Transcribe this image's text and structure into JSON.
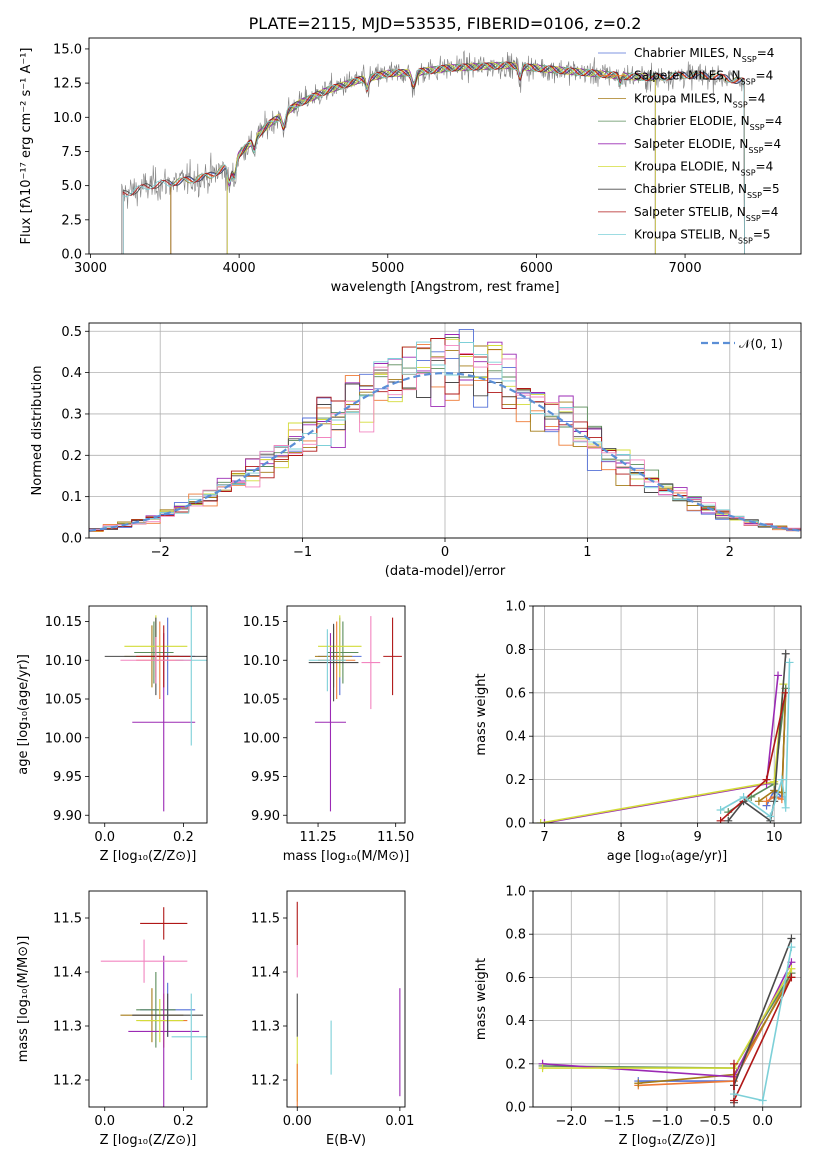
{
  "colors": {
    "Chabrier MILES": "#5470d8",
    "Salpeter MILES": "#ee7a35",
    "Kroupa MILES": "#a57c18",
    "Chabrier ELODIE": "#5a8c5a",
    "Salpeter ELODIE": "#9b2ab4",
    "Kroupa ELODIE": "#d3dc3a",
    "Chabrier STELIB": "#4a4a4a",
    "Salpeter STELIB": "#b01818",
    "Kroupa STELIB": "#7dd0d8",
    "Data": "#808080",
    "Pink": "#f285c0",
    "Gaussian": "#5b8fd6"
  },
  "chart_data": [
    {
      "id": "spectrum",
      "type": "line",
      "title": "PLATE=2115, MJD=53535, FIBERID=0106, z=0.2",
      "xlabel": "wavelength [Angstrom, rest frame]",
      "ylabel": "Flux [fλ10⁻¹⁷ erg cm⁻² s⁻¹ A⁻¹]",
      "xlim": [
        2990,
        7780
      ],
      "ylim": [
        0,
        15.8
      ],
      "xticks": [
        3000,
        4000,
        5000,
        6000,
        7000
      ],
      "yticks": [
        0.0,
        2.5,
        5.0,
        7.5,
        10.0,
        12.5,
        15.0
      ],
      "legend_position": "top-right",
      "legend": [
        "Chabrier MILES, N_SSP=4",
        "Salpeter MILES, N_SSP=4",
        "Kroupa MILES, N_SSP=4",
        "Chabrier ELODIE, N_SSP=4",
        "Salpeter ELODIE, N_SSP=4",
        "Kroupa ELODIE, N_SSP=4",
        "Chabrier STELIB, N_SSP=5",
        "Salpeter STELIB, N_SSP=4",
        "Kroupa STELIB, N_SSP=5"
      ],
      "continuum": [
        [
          3200,
          4.3
        ],
        [
          3400,
          5.0
        ],
        [
          3600,
          5.3
        ],
        [
          3800,
          5.7
        ],
        [
          3900,
          6.3
        ],
        [
          4000,
          7.3
        ],
        [
          4200,
          9.5
        ],
        [
          4400,
          11.0
        ],
        [
          4600,
          12.0
        ],
        [
          4800,
          12.7
        ],
        [
          5000,
          13.2
        ],
        [
          5200,
          13.3
        ],
        [
          5400,
          13.6
        ],
        [
          5600,
          13.7
        ],
        [
          5800,
          13.8
        ],
        [
          6000,
          13.6
        ],
        [
          6200,
          13.4
        ],
        [
          6400,
          13.2
        ],
        [
          6600,
          13.0
        ],
        [
          6800,
          12.9
        ],
        [
          7000,
          13.1
        ],
        [
          7200,
          13.0
        ],
        [
          7400,
          12.6
        ]
      ]
    },
    {
      "id": "residuals",
      "type": "line",
      "xlabel": "(data-model)/error",
      "ylabel": "Normed distribution",
      "xlim": [
        -2.5,
        2.5
      ],
      "ylim": [
        0,
        0.52
      ],
      "xticks": [
        -2,
        -1,
        0,
        1,
        2
      ],
      "yticks": [
        0.0,
        0.1,
        0.2,
        0.3,
        0.4,
        0.5
      ],
      "grid": true,
      "legend": [
        "𝒩(0, 1)"
      ],
      "legend_position": "top-right"
    },
    {
      "id": "age-Z",
      "type": "scatter",
      "xlabel": "Z [log₁₀(Z/Z⊙)]",
      "ylabel": "age  [log₁₀(age/yr)]",
      "xlim": [
        -0.04,
        0.26
      ],
      "ylim": [
        9.89,
        10.17
      ],
      "xticks": [
        0.0,
        0.2
      ],
      "yticks": [
        9.9,
        9.95,
        10.0,
        10.05,
        10.1,
        10.15
      ],
      "points": [
        {
          "model": "Chabrier MILES",
          "x": 0.16,
          "y": 10.105,
          "xerr": 0.07,
          "yerr": 0.05
        },
        {
          "model": "Salpeter MILES",
          "x": 0.14,
          "y": 10.1,
          "xerr": 0.06,
          "yerr": 0.05
        },
        {
          "model": "Kroupa MILES",
          "x": 0.12,
          "y": 10.105,
          "xerr": 0.07,
          "yerr": 0.04
        },
        {
          "model": "Chabrier ELODIE",
          "x": 0.125,
          "y": 10.11,
          "xerr": 0.05,
          "yerr": 0.04
        },
        {
          "model": "Salpeter ELODIE",
          "x": 0.15,
          "y": 10.02,
          "xerr": 0.08,
          "yerr": 0.115
        },
        {
          "model": "Kroupa ELODIE",
          "x": 0.13,
          "y": 10.118,
          "xerr": 0.08,
          "yerr": 0.04
        },
        {
          "model": "Chabrier STELIB",
          "x": 0.13,
          "y": 10.105,
          "xerr": 0.13,
          "yerr": 0.05
        },
        {
          "model": "Salpeter STELIB",
          "x": 0.15,
          "y": 10.105,
          "xerr": 0.07,
          "yerr": 0.04
        },
        {
          "model": "Kroupa STELIB",
          "x": 0.22,
          "y": 10.1,
          "xerr": 0.04,
          "yerr": 0.11
        },
        {
          "model": "Pink",
          "x": 0.13,
          "y": 10.1,
          "xerr": 0.09,
          "yerr": 0.03
        }
      ]
    },
    {
      "id": "age-mass",
      "type": "scatter",
      "xlabel": "mass [log₁₀(M/M⊙)]",
      "xlim": [
        11.15,
        11.53
      ],
      "ylim": [
        9.89,
        10.17
      ],
      "xticks": [
        11.25,
        11.5
      ],
      "yticks": [
        9.9,
        9.95,
        10.0,
        10.05,
        10.1,
        10.15
      ],
      "points": [
        {
          "model": "Chabrier MILES",
          "x": 11.32,
          "y": 10.105,
          "xerr": 0.07,
          "yerr": 0.05
        },
        {
          "model": "Salpeter MILES",
          "x": 11.31,
          "y": 10.1,
          "xerr": 0.06,
          "yerr": 0.05
        },
        {
          "model": "Kroupa MILES",
          "x": 11.3,
          "y": 10.105,
          "xerr": 0.06,
          "yerr": 0.04
        },
        {
          "model": "Chabrier ELODIE",
          "x": 11.33,
          "y": 10.11,
          "xerr": 0.05,
          "yerr": 0.04
        },
        {
          "model": "Salpeter ELODIE",
          "x": 11.29,
          "y": 10.02,
          "xerr": 0.05,
          "yerr": 0.115
        },
        {
          "model": "Kroupa ELODIE",
          "x": 11.32,
          "y": 10.118,
          "xerr": 0.07,
          "yerr": 0.04
        },
        {
          "model": "Chabrier STELIB",
          "x": 11.3,
          "y": 10.097,
          "xerr": 0.08,
          "yerr": 0.05
        },
        {
          "model": "Salpeter STELIB",
          "x": 11.49,
          "y": 10.105,
          "xerr": 0.03,
          "yerr": 0.05
        },
        {
          "model": "Kroupa STELIB",
          "x": 11.28,
          "y": 10.1,
          "xerr": 0.06,
          "yerr": 0.04
        },
        {
          "model": "Pink",
          "x": 11.42,
          "y": 10.097,
          "xerr": 0.03,
          "yerr": 0.06
        }
      ]
    },
    {
      "id": "weight-age",
      "type": "line",
      "xlabel": "age  [log₁₀(age/yr)]",
      "ylabel": "mass weight",
      "xlim": [
        6.85,
        10.35
      ],
      "ylim": [
        0,
        1.0
      ],
      "xticks": [
        7,
        8,
        9,
        10
      ],
      "yticks": [
        0.0,
        0.2,
        0.4,
        0.6,
        0.8,
        1.0
      ],
      "grid": true,
      "series": [
        {
          "model": "Chabrier MILES",
          "points": [
            [
              9.9,
              0.08
            ],
            [
              10.0,
              0.15
            ],
            [
              10.1,
              0.12
            ],
            [
              10.15,
              0.62
            ]
          ]
        },
        {
          "model": "Salpeter MILES",
          "points": [
            [
              9.9,
              0.1
            ],
            [
              10.0,
              0.12
            ],
            [
              10.1,
              0.11
            ],
            [
              10.15,
              0.62
            ]
          ]
        },
        {
          "model": "Kroupa MILES",
          "points": [
            [
              9.8,
              0.1
            ],
            [
              10.0,
              0.15
            ],
            [
              10.1,
              0.14
            ],
            [
              10.15,
              0.6
            ]
          ]
        },
        {
          "model": "Chabrier ELODIE",
          "points": [
            [
              9.4,
              0.05
            ],
            [
              9.7,
              0.12
            ],
            [
              10.0,
              0.18
            ],
            [
              10.15,
              0.62
            ]
          ]
        },
        {
          "model": "Salpeter ELODIE",
          "points": [
            [
              7.0,
              0.0
            ],
            [
              9.9,
              0.18
            ],
            [
              10.05,
              0.68
            ]
          ]
        },
        {
          "model": "Kroupa ELODIE",
          "points": [
            [
              6.95,
              0.0
            ],
            [
              10.0,
              0.19
            ],
            [
              10.12,
              0.64
            ]
          ]
        },
        {
          "model": "Chabrier STELIB",
          "points": [
            [
              9.4,
              0.01
            ],
            [
              9.6,
              0.1
            ],
            [
              9.95,
              0.01
            ],
            [
              10.0,
              0.1
            ],
            [
              10.15,
              0.78
            ]
          ]
        },
        {
          "model": "Salpeter STELIB",
          "points": [
            [
              9.3,
              0.01
            ],
            [
              9.9,
              0.2
            ],
            [
              10.15,
              0.6
            ]
          ]
        },
        {
          "model": "Kroupa STELIB",
          "points": [
            [
              9.3,
              0.06
            ],
            [
              9.6,
              0.12
            ],
            [
              9.95,
              0.03
            ],
            [
              10.1,
              0.2
            ],
            [
              10.15,
              0.07
            ],
            [
              10.2,
              0.74
            ]
          ]
        }
      ]
    },
    {
      "id": "mass-Z",
      "type": "scatter",
      "xlabel": "Z [log₁₀(Z/Z⊙)]",
      "ylabel": "mass [log₁₀(M/M⊙)]",
      "xlim": [
        -0.04,
        0.26
      ],
      "ylim": [
        11.15,
        11.55
      ],
      "xticks": [
        0.0,
        0.2
      ],
      "yticks": [
        11.2,
        11.3,
        11.4,
        11.5
      ],
      "points": [
        {
          "model": "Chabrier MILES",
          "x": 0.16,
          "y": 11.33,
          "xerr": 0.07,
          "yerr": 0.05
        },
        {
          "model": "Salpeter MILES",
          "x": 0.15,
          "y": 11.31,
          "xerr": 0.06,
          "yerr": 0.05
        },
        {
          "model": "Kroupa MILES",
          "x": 0.12,
          "y": 11.32,
          "xerr": 0.08,
          "yerr": 0.05
        },
        {
          "model": "Chabrier ELODIE",
          "x": 0.13,
          "y": 11.33,
          "xerr": 0.05,
          "yerr": 0.07
        },
        {
          "model": "Salpeter ELODIE",
          "x": 0.15,
          "y": 11.29,
          "xerr": 0.09,
          "yerr": 0.14
        },
        {
          "model": "Kroupa ELODIE",
          "x": 0.14,
          "y": 11.31,
          "xerr": 0.06,
          "yerr": 0.04
        },
        {
          "model": "Chabrier STELIB",
          "x": 0.16,
          "y": 11.32,
          "xerr": 0.09,
          "yerr": 0.04
        },
        {
          "model": "Salpeter STELIB",
          "x": 0.15,
          "y": 11.49,
          "xerr": 0.06,
          "yerr": 0.03
        },
        {
          "model": "Kroupa STELIB",
          "x": 0.22,
          "y": 11.28,
          "xerr": 0.05,
          "yerr": 0.08
        },
        {
          "model": "Pink",
          "x": 0.1,
          "y": 11.42,
          "xerr": 0.11,
          "yerr": 0.04
        }
      ]
    },
    {
      "id": "mass-ebv",
      "type": "scatter",
      "xlabel": "E(B-V)",
      "xlim": [
        -0.001,
        0.0105
      ],
      "ylim": [
        11.15,
        11.55
      ],
      "xticks": [
        0.0,
        0.01
      ],
      "yticks": [
        11.2,
        11.3,
        11.4,
        11.5
      ],
      "points": [
        {
          "model": "Salpeter STELIB",
          "x": 0.0,
          "y": 11.49,
          "yerr": 0.04
        },
        {
          "model": "Pink",
          "x": 0.0,
          "y": 11.42,
          "yerr": 0.03
        },
        {
          "model": "Chabrier STELIB",
          "x": 0.0,
          "y": 11.32,
          "yerr": 0.04
        },
        {
          "model": "Kroupa ELODIE",
          "x": 0.0,
          "y": 11.22,
          "yerr": 0.06
        },
        {
          "model": "Salpeter MILES",
          "x": 0.0,
          "y": 11.19,
          "yerr": 0.04
        },
        {
          "model": "Kroupa STELIB",
          "x": 0.0033,
          "y": 11.26,
          "yerr": 0.05
        },
        {
          "model": "Salpeter ELODIE",
          "x": 0.01,
          "y": 11.27,
          "yerr": 0.1
        }
      ]
    },
    {
      "id": "weight-Z",
      "type": "line",
      "xlabel": "Z [log₁₀(Z/Z⊙)]",
      "ylabel": "mass weight",
      "xlim": [
        -2.4,
        0.4
      ],
      "ylim": [
        0,
        1.0
      ],
      "xticks": [
        -2.0,
        -1.5,
        -1.0,
        -0.5,
        0.0
      ],
      "yticks": [
        0.0,
        0.2,
        0.4,
        0.6,
        0.8,
        1.0
      ],
      "grid": true,
      "series": [
        {
          "model": "Chabrier MILES",
          "points": [
            [
              -1.3,
              0.12
            ],
            [
              -0.3,
              0.12
            ],
            [
              0.3,
              0.62
            ]
          ]
        },
        {
          "model": "Salpeter MILES",
          "points": [
            [
              -1.3,
              0.1
            ],
            [
              -0.3,
              0.12
            ],
            [
              0.3,
              0.62
            ]
          ]
        },
        {
          "model": "Kroupa MILES",
          "points": [
            [
              -1.3,
              0.11
            ],
            [
              -0.3,
              0.15
            ],
            [
              0.3,
              0.6
            ]
          ]
        },
        {
          "model": "Chabrier ELODIE",
          "points": [
            [
              -2.3,
              0.19
            ],
            [
              -0.3,
              0.18
            ],
            [
              0.3,
              0.62
            ]
          ]
        },
        {
          "model": "Salpeter ELODIE",
          "points": [
            [
              -2.3,
              0.2
            ],
            [
              -0.3,
              0.14
            ],
            [
              0.3,
              0.67
            ]
          ]
        },
        {
          "model": "Kroupa ELODIE",
          "points": [
            [
              -2.3,
              0.18
            ],
            [
              -0.3,
              0.18
            ],
            [
              0.3,
              0.64
            ]
          ]
        },
        {
          "model": "Chabrier STELIB",
          "points": [
            [
              -0.3,
              0.02
            ],
            [
              -0.3,
              0.1
            ],
            [
              0.3,
              0.78
            ]
          ]
        },
        {
          "model": "Salpeter STELIB",
          "points": [
            [
              -0.3,
              0.2
            ],
            [
              -0.3,
              0.03
            ],
            [
              0.3,
              0.6
            ]
          ]
        },
        {
          "model": "Kroupa STELIB",
          "points": [
            [
              -0.3,
              0.06
            ],
            [
              0.0,
              0.03
            ],
            [
              0.3,
              0.74
            ]
          ]
        }
      ]
    }
  ]
}
